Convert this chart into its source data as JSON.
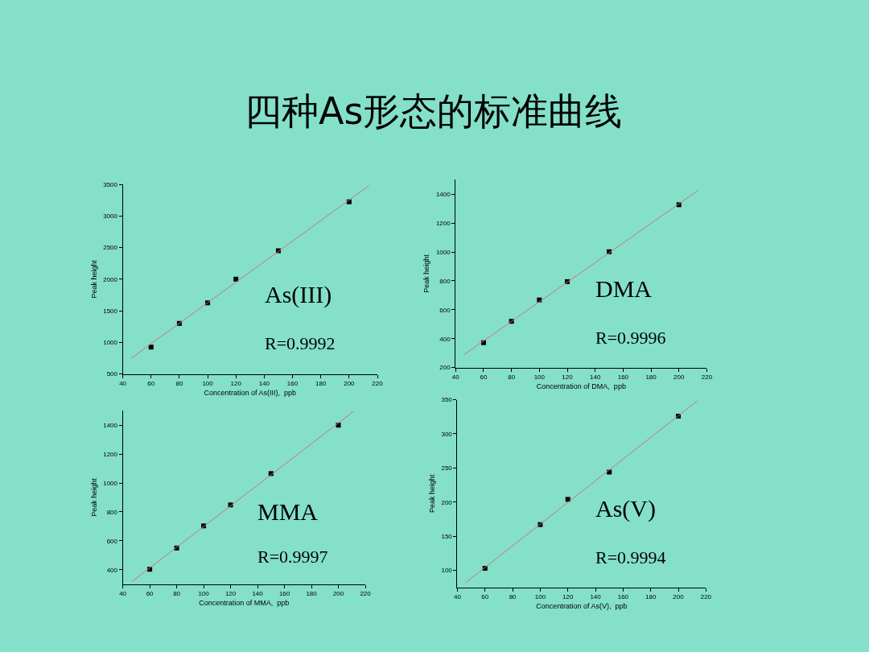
{
  "chart_data": [
    {
      "type": "scatter",
      "title": "四种As形态的标准曲线",
      "xlabel": "Concentration of As(III),  ppb",
      "ylabel": "Peak height",
      "xlim": [
        40,
        220
      ],
      "xticks": [
        40,
        60,
        80,
        100,
        120,
        140,
        160,
        180,
        200,
        220
      ],
      "ylim": [
        500,
        3500
      ],
      "yticks": [
        500,
        1000,
        1500,
        2000,
        2500,
        3000,
        3500
      ],
      "grid": false,
      "marker": "square",
      "annotations": [
        "As(III)",
        "R=0.9992"
      ],
      "series": [
        {
          "color": "#000000",
          "x": [
            60,
            80,
            100,
            120,
            150,
            200
          ],
          "values": [
            925,
            1300,
            1625,
            2000,
            2450,
            3225
          ]
        },
        {
          "type": "line",
          "color": "#c87878",
          "marker": "none",
          "x": [
            46,
            214
          ],
          "values": [
            750,
            3480
          ]
        }
      ]
    },
    {
      "type": "scatter",
      "xlabel": "Concentration of DMA,  ppb",
      "ylabel": "Peak height",
      "xlim": [
        40,
        220
      ],
      "xticks": [
        40,
        60,
        80,
        100,
        120,
        140,
        160,
        180,
        200,
        220
      ],
      "ylim": [
        200,
        1500
      ],
      "yticks": [
        200,
        400,
        600,
        800,
        1000,
        1200,
        1400
      ],
      "grid": false,
      "marker": "square",
      "annotations": [
        "DMA",
        "R=0.9996"
      ],
      "series": [
        {
          "color": "#000000",
          "x": [
            60,
            80,
            100,
            120,
            150,
            200
          ],
          "values": [
            372,
            520,
            668,
            795,
            1002,
            1328
          ]
        },
        {
          "type": "line",
          "color": "#c87878",
          "marker": "none",
          "x": [
            46,
            214
          ],
          "values": [
            289,
            1429
          ]
        }
      ]
    },
    {
      "type": "scatter",
      "xlabel": "Concentration of MMA,  ppb",
      "ylabel": "Peak height",
      "xlim": [
        40,
        220
      ],
      "xticks": [
        40,
        60,
        80,
        100,
        120,
        140,
        160,
        180,
        200,
        220
      ],
      "ylim": [
        300,
        1500
      ],
      "yticks": [
        400,
        600,
        800,
        1000,
        1200,
        1400
      ],
      "grid": false,
      "marker": "square",
      "annotations": [
        "MMA",
        "R=0.9997"
      ],
      "series": [
        {
          "color": "#000000",
          "x": [
            60,
            80,
            100,
            120,
            150,
            200
          ],
          "values": [
            403,
            550,
            703,
            848,
            1065,
            1400
          ]
        },
        {
          "type": "line",
          "color": "#c87878",
          "marker": "none",
          "x": [
            47,
            211.5
          ],
          "values": [
            319,
            1497
          ]
        }
      ]
    },
    {
      "type": "scatter",
      "xlabel": "Concentration of As(V),  ppb",
      "ylabel": "Peak height",
      "xlim": [
        40,
        220
      ],
      "xticks": [
        40,
        60,
        80,
        100,
        120,
        140,
        160,
        180,
        200,
        220
      ],
      "ylim": [
        75,
        350
      ],
      "yticks": [
        100,
        150,
        200,
        250,
        300,
        350
      ],
      "grid": false,
      "marker": "square",
      "annotations": [
        "As(V)",
        "R=0.9994"
      ],
      "series": [
        {
          "color": "#000000",
          "x": [
            60,
            100,
            120,
            150,
            200
          ],
          "values": [
            103,
            167,
            204,
            244,
            326
          ]
        },
        {
          "type": "line",
          "color": "#c87878",
          "marker": "none",
          "x": [
            46,
            213.5
          ],
          "values": [
            82,
            348
          ]
        }
      ]
    }
  ]
}
